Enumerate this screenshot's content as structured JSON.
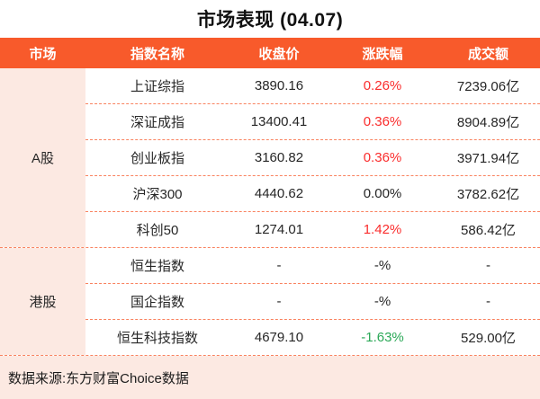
{
  "title": "市场表现 (04.07)",
  "columns": {
    "market": "市场",
    "name": "指数名称",
    "close": "收盘价",
    "change": "涨跌幅",
    "turnover": "成交额"
  },
  "sections": [
    {
      "market": "A股",
      "rows": [
        {
          "name": "上证综指",
          "close": "3890.16",
          "change": "0.26%",
          "trend": "up",
          "turnover": "7239.06亿"
        },
        {
          "name": "深证成指",
          "close": "13400.41",
          "change": "0.36%",
          "trend": "up",
          "turnover": "8904.89亿"
        },
        {
          "name": "创业板指",
          "close": "3160.82",
          "change": "0.36%",
          "trend": "up",
          "turnover": "3971.94亿"
        },
        {
          "name": "沪深300",
          "close": "4440.62",
          "change": "0.00%",
          "trend": "flat",
          "turnover": "3782.62亿"
        },
        {
          "name": "科创50",
          "close": "1274.01",
          "change": "1.42%",
          "trend": "up",
          "turnover": "586.42亿"
        }
      ]
    },
    {
      "market": "港股",
      "rows": [
        {
          "name": "恒生指数",
          "close": "-",
          "change": "-%",
          "trend": "flat",
          "turnover": "-"
        },
        {
          "name": "国企指数",
          "close": "-",
          "change": "-%",
          "trend": "flat",
          "turnover": "-"
        },
        {
          "name": "恒生科技指数",
          "close": "4679.10",
          "change": "-1.63%",
          "trend": "down",
          "turnover": "529.00亿"
        }
      ]
    }
  ],
  "footer": {
    "source": "数据来源:东方财富Choice数据"
  },
  "colors": {
    "accent_orange": "#F85A2B",
    "light_pink": "#FCE9E2",
    "dash_salmon": "#F9825F",
    "up_red": "#FA2D2D",
    "down_green": "#2BA857",
    "text_dark": "#262626"
  },
  "chart_data": {
    "type": "table",
    "title": "市场表现 (04.07)",
    "columns": [
      "市场",
      "指数名称",
      "收盘价",
      "涨跌幅",
      "成交额"
    ],
    "rows": [
      [
        "A股",
        "上证综指",
        "3890.16",
        "0.26%",
        "7239.06亿"
      ],
      [
        "A股",
        "深证成指",
        "13400.41",
        "0.36%",
        "8904.89亿"
      ],
      [
        "A股",
        "创业板指",
        "3160.82",
        "0.36%",
        "3971.94亿"
      ],
      [
        "A股",
        "沪深300",
        "4440.62",
        "0.00%",
        "3782.62亿"
      ],
      [
        "A股",
        "科创50",
        "1274.01",
        "1.42%",
        "586.42亿"
      ],
      [
        "港股",
        "恒生指数",
        "-",
        "-%",
        "-"
      ],
      [
        "港股",
        "国企指数",
        "-",
        "-%",
        "-"
      ],
      [
        "港股",
        "恒生科技指数",
        "4679.10",
        "-1.63%",
        "529.00亿"
      ]
    ],
    "notes": "涨跌幅红色=上涨, 绿色=下跌; 成交额单位:亿",
    "source": "数据来源:东方财富Choice数据"
  }
}
